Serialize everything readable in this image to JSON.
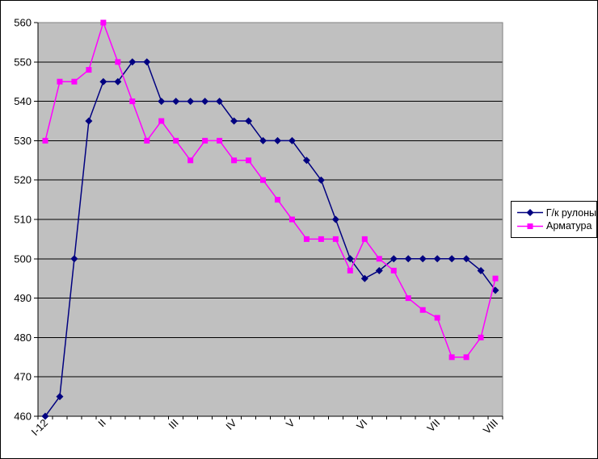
{
  "chart_data": {
    "type": "line",
    "n_points": 32,
    "ylim": [
      460,
      560
    ],
    "y_ticks": [
      460,
      470,
      480,
      490,
      500,
      510,
      520,
      530,
      540,
      550,
      560
    ],
    "x_tick_labels": [
      {
        "index": 0,
        "label": "I-12"
      },
      {
        "index": 4,
        "label": "II"
      },
      {
        "index": 9,
        "label": "III"
      },
      {
        "index": 13,
        "label": "IV"
      },
      {
        "index": 17,
        "label": "V"
      },
      {
        "index": 22,
        "label": "VI"
      },
      {
        "index": 27,
        "label": "VII"
      },
      {
        "index": 31,
        "label": "VIII"
      }
    ],
    "grid": "horizontal",
    "legend_position": "right-middle",
    "plot_bg": "#C0C0C0",
    "grid_color": "#000000",
    "plot_border_color": "#808080",
    "series": [
      {
        "name": "Г/к рулоны",
        "color": "#000080",
        "marker": "diamond",
        "values": [
          460,
          465,
          500,
          535,
          545,
          545,
          550,
          550,
          540,
          540,
          540,
          540,
          540,
          535,
          535,
          530,
          530,
          530,
          525,
          520,
          510,
          500,
          495,
          497,
          500,
          500,
          500,
          500,
          500,
          500,
          497,
          492
        ]
      },
      {
        "name": "Арматура",
        "color": "#FF00FF",
        "marker": "square",
        "values": [
          530,
          545,
          545,
          548,
          560,
          550,
          540,
          530,
          535,
          530,
          525,
          530,
          530,
          525,
          525,
          520,
          515,
          510,
          505,
          505,
          505,
          497,
          505,
          500,
          497,
          490,
          487,
          485,
          475,
          475,
          480,
          495
        ]
      }
    ]
  }
}
